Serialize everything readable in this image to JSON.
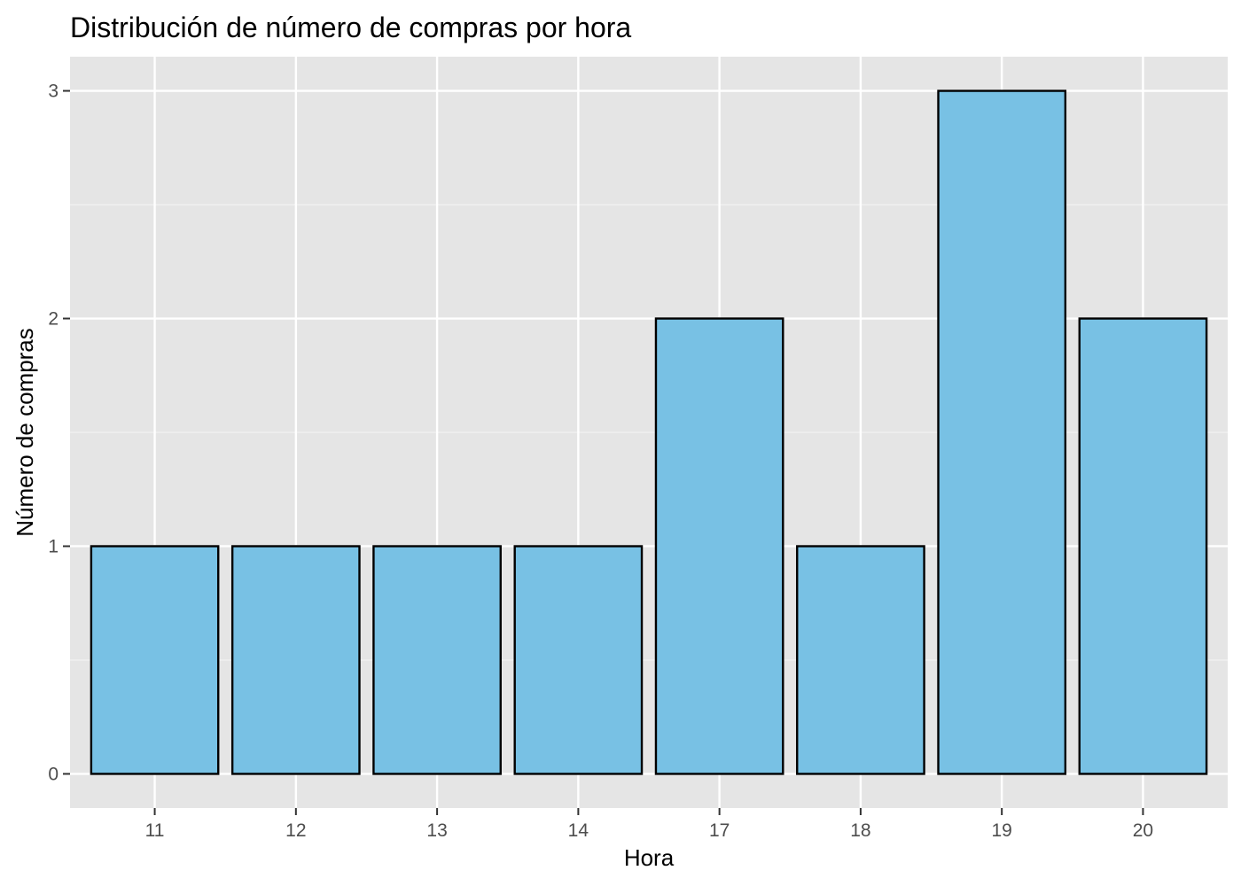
{
  "chart_data": {
    "type": "bar",
    "title": "Distribución de número de compras por hora",
    "xlabel": "Hora",
    "ylabel": "Número de compras",
    "categories": [
      "11",
      "12",
      "13",
      "14",
      "17",
      "18",
      "19",
      "20"
    ],
    "values": [
      1,
      1,
      1,
      1,
      2,
      1,
      3,
      2
    ],
    "ylim": [
      -0.15,
      3.15
    ],
    "yticks": [
      "0",
      "1",
      "2",
      "3"
    ],
    "grid": true,
    "legend": "none",
    "colors": {
      "bar_fill": "#78C1E4",
      "bar_stroke": "#000000",
      "panel_background": "#E5E5E5",
      "grid_major": "#FFFFFF",
      "grid_minor": "#F2F2F2",
      "tick_text": "#4D4D4D"
    }
  }
}
